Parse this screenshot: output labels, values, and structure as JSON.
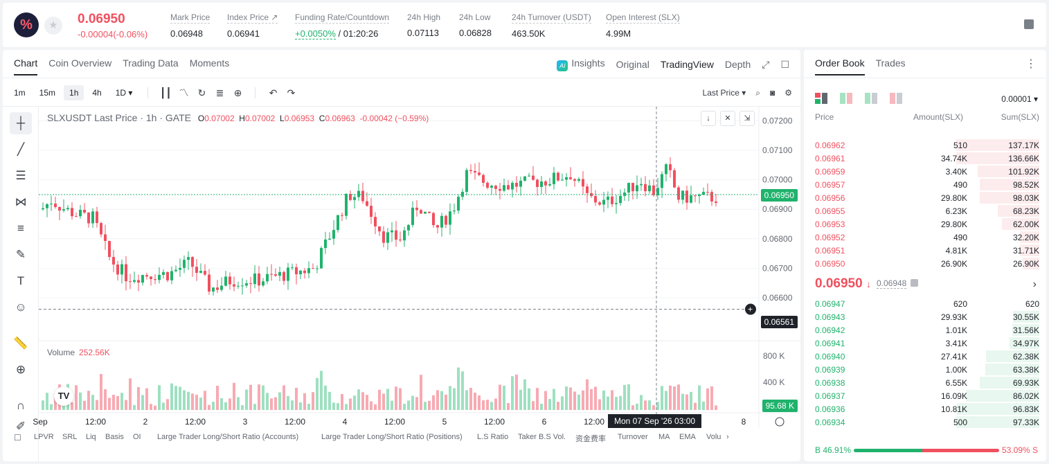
{
  "header": {
    "logo_text": "%",
    "price": "0.06950",
    "change": "-0.00004(-0.06%)",
    "stats": [
      {
        "label": "Mark Price",
        "value": "0.06948"
      },
      {
        "label": "Index Price ↗",
        "value": "0.06941"
      },
      {
        "label": "Funding Rate/Countdown",
        "value_rate": "+0.0050%",
        "value_countdown": " / 01:20:26"
      },
      {
        "label": "24h High",
        "value": "0.07113"
      },
      {
        "label": "24h Low",
        "value": "0.06828"
      },
      {
        "label": "24h Turnover (USDT)",
        "value": "463.50K"
      },
      {
        "label": "Open Interest (SLX)",
        "value": "4.99M"
      }
    ]
  },
  "chart_tabs": [
    "Chart",
    "Coin Overview",
    "Trading Data",
    "Moments"
  ],
  "view_tabs": {
    "insights": "Insights",
    "ai_badge": "AI",
    "original": "Original",
    "tradingview": "TradingView",
    "depth": "Depth"
  },
  "timeframes": [
    "1m",
    "15m",
    "1h",
    "4h",
    "1D ▾"
  ],
  "price_source": "Last Price ▾",
  "legend": {
    "symbol": "SLXUSDT Last Price · 1h · GATE",
    "o": "0.07002",
    "h": "0.07002",
    "l": "0.06953",
    "c": "0.06963",
    "chg": "-0.00042 (−0.59%)",
    "o_label": "O",
    "h_label": "H",
    "l_label": "L",
    "c_label": "C"
  },
  "volume_legend": {
    "label": "Volume",
    "value": "252.56K"
  },
  "price_tags": {
    "last": "0.06950",
    "cross": "0.06561",
    "volume": "95.68 K"
  },
  "crosshair_time": "Mon 07 Sep '26   03:00",
  "tv_logo": "TV",
  "indicators": [
    "LPVR",
    "SRL",
    "Liq",
    "Basis",
    "OI",
    "Large Trader Long/Short Ratio (Accounts)",
    "Large Trader Long/Short Ratio (Positions)",
    "L.S Ratio",
    "Taker B.S Vol.",
    "资金费率",
    "Turnover",
    "MA",
    "EMA",
    "Volu",
    "›"
  ],
  "chart_data": {
    "type": "candlestick",
    "y_ticks": [
      "0.07200",
      "0.07100",
      "0.07000",
      "0.06900",
      "0.06800",
      "0.06700",
      "0.06600"
    ],
    "vol_ticks": [
      "800 K",
      "400 K"
    ],
    "x_ticks": [
      "Sep",
      "12:00",
      "2",
      "12:00",
      "3",
      "12:00",
      "4",
      "12:00",
      "5",
      "12:00",
      "6",
      "12:00",
      "8"
    ],
    "ylim": [
      0.0652,
      0.0722
    ],
    "last_price": 0.0695,
    "cross_price": 0.06561
  },
  "orderbook": {
    "tabs": [
      "Order Book",
      "Trades"
    ],
    "precision": "0.00001 ▾",
    "headers": {
      "price": "Price",
      "amount": "Amount(SLX)",
      "sum": "Sum(SLX)"
    },
    "asks": [
      {
        "price": "0.06962",
        "amount": "510",
        "sum": "137.17K",
        "depth": 1.0
      },
      {
        "price": "0.06961",
        "amount": "34.74K",
        "sum": "136.66K",
        "depth": 0.996
      },
      {
        "price": "0.06959",
        "amount": "3.40K",
        "sum": "101.92K",
        "depth": 0.743
      },
      {
        "price": "0.06957",
        "amount": "490",
        "sum": "98.52K",
        "depth": 0.718
      },
      {
        "price": "0.06956",
        "amount": "29.80K",
        "sum": "98.03K",
        "depth": 0.715
      },
      {
        "price": "0.06955",
        "amount": "6.23K",
        "sum": "68.23K",
        "depth": 0.497
      },
      {
        "price": "0.06953",
        "amount": "29.80K",
        "sum": "62.00K",
        "depth": 0.452
      },
      {
        "price": "0.06952",
        "amount": "490",
        "sum": "32.20K",
        "depth": 0.235
      },
      {
        "price": "0.06951",
        "amount": "4.81K",
        "sum": "31.71K",
        "depth": 0.231
      },
      {
        "price": "0.06950",
        "amount": "26.90K",
        "sum": "26.90K",
        "depth": 0.196
      }
    ],
    "mid_price": "0.06950",
    "mid_arrow": "↓",
    "mark_price": "0.06948",
    "bids": [
      {
        "price": "0.06947",
        "amount": "620",
        "sum": "620",
        "depth": 0.006
      },
      {
        "price": "0.06943",
        "amount": "29.93K",
        "sum": "30.55K",
        "depth": 0.314
      },
      {
        "price": "0.06942",
        "amount": "1.01K",
        "sum": "31.56K",
        "depth": 0.324
      },
      {
        "price": "0.06941",
        "amount": "3.41K",
        "sum": "34.97K",
        "depth": 0.359
      },
      {
        "price": "0.06940",
        "amount": "27.41K",
        "sum": "62.38K",
        "depth": 0.641
      },
      {
        "price": "0.06939",
        "amount": "1.00K",
        "sum": "63.38K",
        "depth": 0.651
      },
      {
        "price": "0.06938",
        "amount": "6.55K",
        "sum": "69.93K",
        "depth": 0.718
      },
      {
        "price": "0.06937",
        "amount": "16.09K",
        "sum": "86.02K",
        "depth": 0.883
      },
      {
        "price": "0.06936",
        "amount": "10.81K",
        "sum": "96.83K",
        "depth": 0.994
      },
      {
        "price": "0.06934",
        "amount": "500",
        "sum": "97.33K",
        "depth": 1.0
      }
    ],
    "buy_ratio": "B 46.91%",
    "sell_ratio": "53.09% S",
    "buy_pct": 46.91
  },
  "colors": {
    "up": "#20b26c",
    "down": "#f0505f",
    "up_bg": "#e8f7ef",
    "down_bg": "#fdeced"
  }
}
